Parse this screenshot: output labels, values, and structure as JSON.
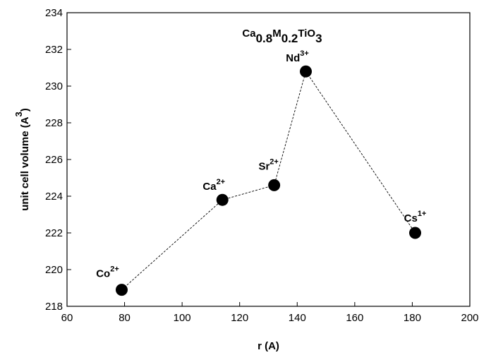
{
  "chart_data": {
    "type": "scatter",
    "title_parts": [
      {
        "text": "Ca"
      },
      {
        "text": "0.8",
        "sub": true
      },
      {
        "text": "M"
      },
      {
        "text": "0.2",
        "sub": true
      },
      {
        "text": "TiO"
      },
      {
        "text": "3",
        "sub": true
      }
    ],
    "x_label": "r (A)",
    "y_label_parts": [
      {
        "text": "unit cell volume (A"
      },
      {
        "text": "3",
        "sup": true
      },
      {
        "text": ")"
      }
    ],
    "x": [
      79,
      114,
      132,
      143,
      181
    ],
    "y": [
      218.9,
      223.8,
      224.6,
      230.8,
      222.0
    ],
    "point_labels": [
      {
        "ion": "Co",
        "charge": "2+"
      },
      {
        "ion": "Ca",
        "charge": "2+"
      },
      {
        "ion": "Sr",
        "charge": "2+"
      },
      {
        "ion": "Nd",
        "charge": "3+"
      },
      {
        "ion": "Cs",
        "charge": "1+"
      }
    ],
    "color": "#000000",
    "line_style": "dashed",
    "xlim": [
      60,
      200
    ],
    "xticks": [
      60,
      80,
      100,
      120,
      140,
      160,
      180,
      200
    ],
    "ylim": [
      218,
      234
    ],
    "yticks": [
      218,
      220,
      222,
      224,
      226,
      228,
      230,
      232,
      234
    ]
  }
}
